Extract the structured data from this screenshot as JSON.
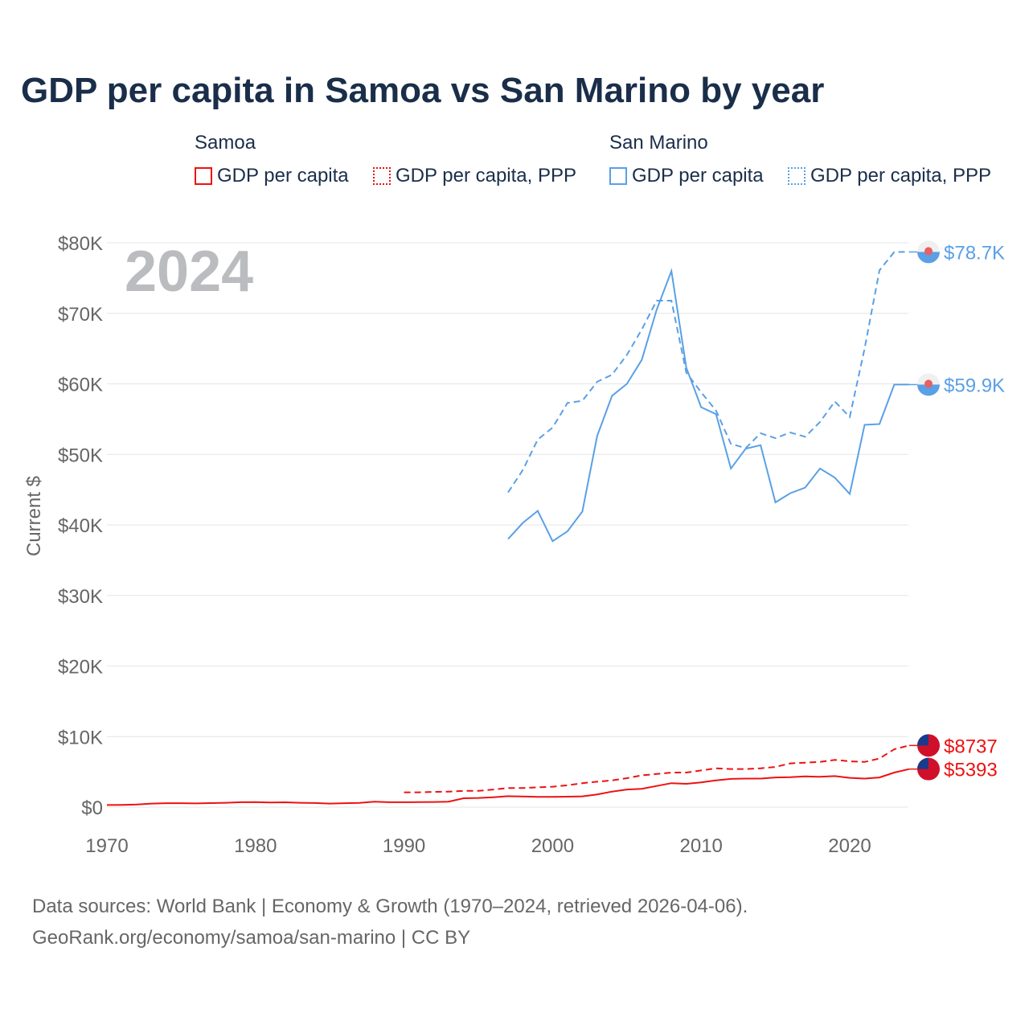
{
  "title": "GDP per capita in Samoa vs San Marino by year",
  "legend": {
    "groups": [
      {
        "name": "Samoa",
        "items": [
          "GDP per capita",
          "GDP per capita, PPP"
        ]
      },
      {
        "name": "San Marino",
        "items": [
          "GDP per capita",
          "GDP per capita, PPP"
        ]
      }
    ]
  },
  "colors": {
    "samoa": "#ee1111",
    "san_marino": "#5aa0e6"
  },
  "source": [
    "Data sources: World Bank | Economy & Growth (1970–2024, retrieved 2026-04-06).",
    "GeoRank.org/economy/samoa/san-marino | CC BY"
  ],
  "chart_data": {
    "type": "line",
    "title": "GDP per capita in Samoa vs San Marino by year",
    "ylabel": "Current $",
    "xlim": [
      1970,
      2024
    ],
    "ylim": [
      0,
      80000
    ],
    "xticks": [
      1970,
      1980,
      1990,
      2000,
      2010,
      2020
    ],
    "yticks": [
      0,
      10000,
      20000,
      30000,
      40000,
      50000,
      60000,
      70000,
      80000
    ],
    "ytick_labels": [
      "$0",
      "$10K",
      "$20K",
      "$30K",
      "$40K",
      "$50K",
      "$60K",
      "$70K",
      "$80K"
    ],
    "year_label": "2024",
    "grid": true,
    "series": [
      {
        "name": "Samoa GDP per capita",
        "color": "#ee1111",
        "dash": false,
        "start": 1970,
        "end_label": "$5393",
        "values": [
          300,
          320,
          380,
          500,
          560,
          560,
          520,
          570,
          620,
          700,
          720,
          650,
          680,
          620,
          580,
          500,
          560,
          600,
          760,
          700,
          700,
          720,
          730,
          780,
          1250,
          1300,
          1400,
          1550,
          1500,
          1450,
          1450,
          1480,
          1530,
          1800,
          2200,
          2500,
          2600,
          3000,
          3400,
          3300,
          3500,
          3800,
          4000,
          4050,
          4050,
          4200,
          4250,
          4350,
          4300,
          4400,
          4150,
          4050,
          4200,
          4900,
          5393
        ]
      },
      {
        "name": "Samoa GDP per capita, PPP",
        "color": "#ee1111",
        "dash": true,
        "start": 1990,
        "end_label": "$8737",
        "values": [
          2100,
          2100,
          2150,
          2200,
          2300,
          2300,
          2500,
          2700,
          2700,
          2800,
          2900,
          3100,
          3400,
          3600,
          3800,
          4100,
          4500,
          4700,
          4900,
          4900,
          5200,
          5500,
          5400,
          5400,
          5500,
          5700,
          6200,
          6300,
          6400,
          6700,
          6500,
          6400,
          6900,
          8200,
          8737
        ]
      },
      {
        "name": "San Marino GDP per capita",
        "color": "#5aa0e6",
        "dash": false,
        "start": 1997,
        "end_label": "$59.9K",
        "values": [
          38000,
          40300,
          42000,
          37700,
          39100,
          41900,
          52600,
          58300,
          60000,
          63400,
          70500,
          76000,
          62300,
          56700,
          55700,
          48000,
          50800,
          51300,
          43200,
          44500,
          45300,
          48000,
          46700,
          44400,
          54200,
          54300,
          59900,
          59900
        ]
      },
      {
        "name": "San Marino GDP per capita, PPP",
        "color": "#5aa0e6",
        "dash": true,
        "start": 1997,
        "end_label": "$78.7K",
        "values": [
          44600,
          47800,
          52100,
          53800,
          57300,
          57600,
          60300,
          61300,
          64100,
          67700,
          71800,
          71800,
          61600,
          58800,
          56200,
          51500,
          50900,
          53000,
          52300,
          53100,
          52500,
          54600,
          57500,
          55300,
          65000,
          76100,
          78700,
          78700
        ]
      }
    ]
  }
}
